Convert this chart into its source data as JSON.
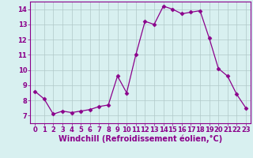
{
  "hours": [
    0,
    1,
    2,
    3,
    4,
    5,
    6,
    7,
    8,
    9,
    10,
    11,
    12,
    13,
    14,
    15,
    16,
    17,
    18,
    19,
    20,
    21,
    22,
    23
  ],
  "values": [
    8.6,
    8.1,
    7.1,
    7.3,
    7.2,
    7.3,
    7.4,
    7.6,
    7.7,
    9.6,
    8.5,
    11.0,
    13.2,
    13.0,
    14.2,
    14.0,
    13.7,
    13.8,
    13.9,
    12.1,
    10.1,
    9.6,
    8.4,
    7.5
  ],
  "line_color": "#8B008B",
  "marker": "D",
  "markersize": 2.5,
  "linewidth": 0.9,
  "bg_color": "#d8f0f0",
  "grid_color": "#b0c8c8",
  "xlabel": "Windchill (Refroidissement éolien,°C)",
  "ylabel": "",
  "xlim": [
    -0.5,
    23.5
  ],
  "ylim": [
    6.5,
    14.5
  ],
  "yticks": [
    7,
    8,
    9,
    10,
    11,
    12,
    13,
    14
  ],
  "xticks": [
    0,
    1,
    2,
    3,
    4,
    5,
    6,
    7,
    8,
    9,
    10,
    11,
    12,
    13,
    14,
    15,
    16,
    17,
    18,
    19,
    20,
    21,
    22,
    23
  ],
  "tick_fontsize": 6.0,
  "xlabel_fontsize": 7.0,
  "tick_color": "#8B008B",
  "label_color": "#8B008B",
  "spine_color": "#8B008B"
}
